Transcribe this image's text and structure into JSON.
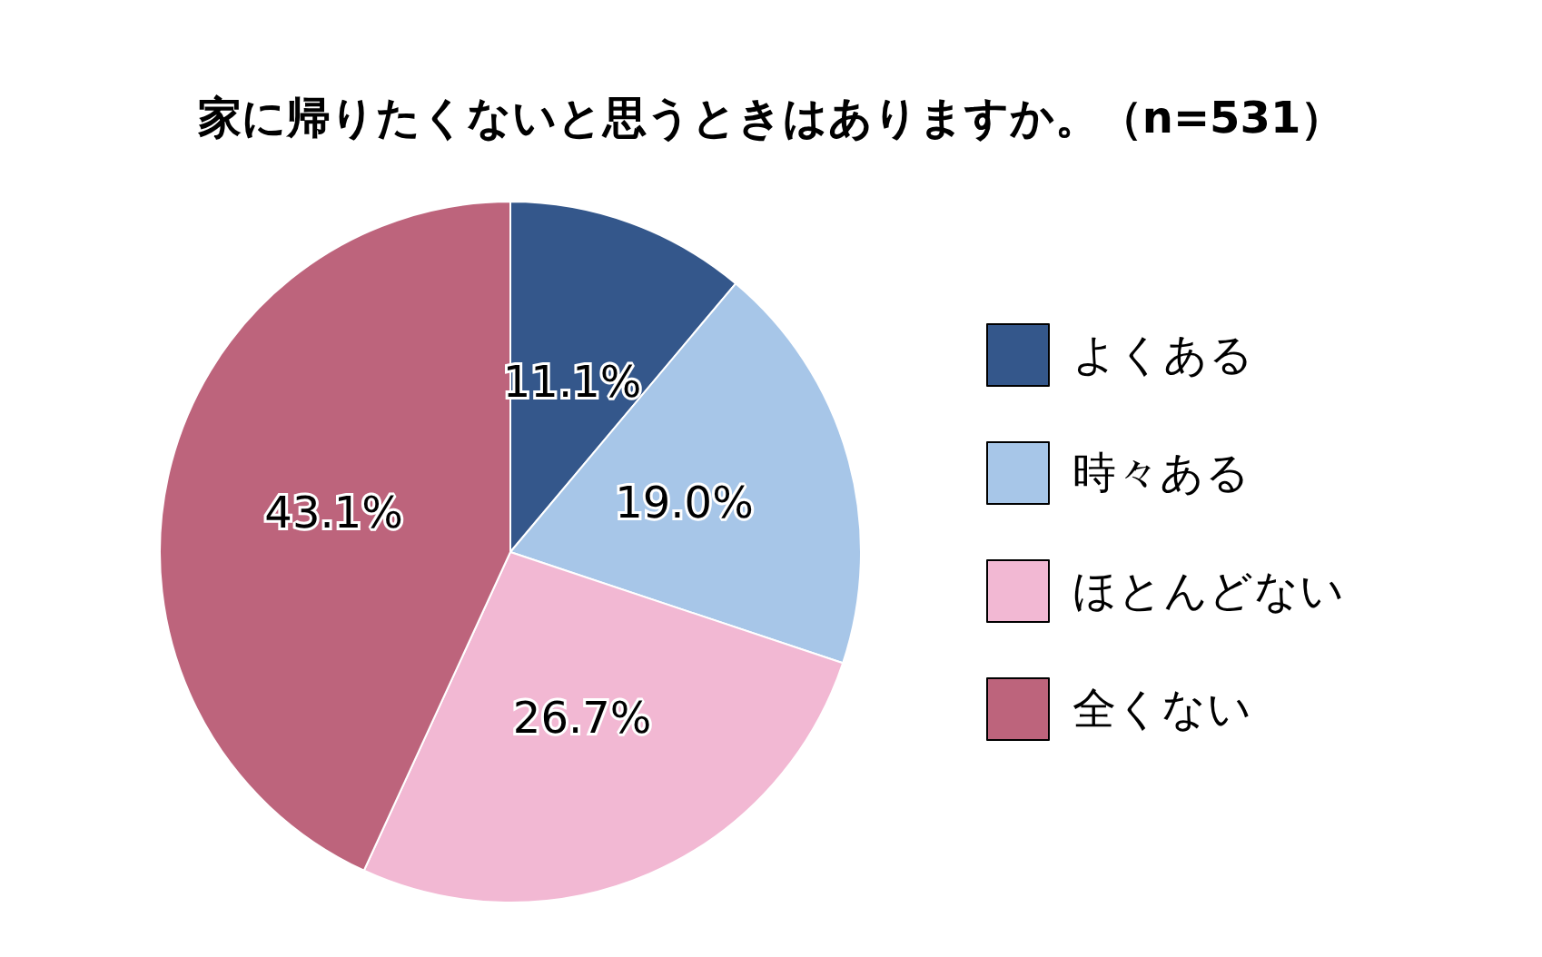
{
  "chart_data": {
    "type": "pie",
    "title": "家に帰りたくないと思うときはありますか。（n=531）",
    "categories": [
      "よくある",
      "時々ある",
      "ほとんどない",
      "全くない"
    ],
    "values": [
      11.1,
      19.0,
      26.7,
      43.1
    ],
    "value_labels": [
      "11.1%",
      "19.0%",
      "26.7%",
      "43.1%"
    ],
    "colors": [
      "#34578b",
      "#a7c6e8",
      "#f2b8d3",
      "#bd647c"
    ],
    "legend": "right"
  }
}
